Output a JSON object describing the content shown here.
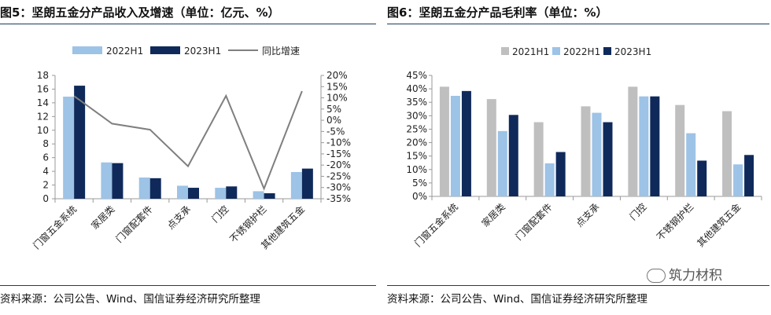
{
  "left": {
    "title": "图5：坚朗五金分产品收入及增速（单位：亿元、%）",
    "source": "资料来源：公司公告、Wind、国信证券经济研究所整理",
    "chart_data": {
      "type": "bar",
      "categories": [
        "门窗五金系统",
        "家居类",
        "门窗配套件",
        "点支承",
        "门控",
        "不锈钢护栏",
        "其他建筑五金"
      ],
      "series": [
        {
          "name": "2022H1",
          "values": [
            14.9,
            5.3,
            3.1,
            1.9,
            1.6,
            1.1,
            3.9
          ],
          "color": "#9dc3e6"
        },
        {
          "name": "2023H1",
          "values": [
            16.5,
            5.2,
            3.0,
            1.6,
            1.8,
            0.8,
            4.4
          ],
          "color": "#0f2a5a"
        }
      ],
      "line": {
        "name": "同比增速",
        "axis": "right",
        "values": [
          10.8,
          -1.5,
          -4.2,
          -20.5,
          10.9,
          -30.5,
          13.0
        ],
        "color": "#7f7f7f"
      },
      "yleft": {
        "min": 0,
        "max": 18,
        "ticks": [
          "0",
          "2",
          "4",
          "6",
          "8",
          "10",
          "12",
          "14",
          "16",
          "18"
        ]
      },
      "yright": {
        "min": -35,
        "max": 20,
        "ticks": [
          "-35%",
          "-30%",
          "-25%",
          "-20%",
          "-15%",
          "-10%",
          "-5%",
          "0%",
          "5%",
          "10%",
          "15%",
          "20%"
        ]
      }
    }
  },
  "right": {
    "title": "图6：坚朗五金分产品毛利率（单位：%）",
    "source": "资料来源：公司公告、Wind、国信证券经济研究所整理",
    "chart_data": {
      "type": "bar",
      "categories": [
        "门窗五金系统",
        "家居类",
        "门窗配套件",
        "点支承",
        "门控",
        "不锈钢护栏",
        "其他建筑五金"
      ],
      "series": [
        {
          "name": "2021H1",
          "values": [
            40.8,
            36.2,
            27.6,
            33.5,
            40.8,
            34.0,
            31.7
          ],
          "color": "#bfbfbf"
        },
        {
          "name": "2022H1",
          "values": [
            37.4,
            24.3,
            12.3,
            31.1,
            37.2,
            23.5,
            11.9
          ],
          "color": "#9dc3e6"
        },
        {
          "name": "2023H1",
          "values": [
            39.2,
            30.3,
            16.5,
            27.6,
            37.2,
            13.3,
            15.4
          ],
          "color": "#0f2a5a"
        }
      ],
      "yleft": {
        "min": 0,
        "max": 45,
        "ticks": [
          "0%",
          "5%",
          "10%",
          "15%",
          "20%",
          "25%",
          "30%",
          "35%",
          "40%",
          "45%"
        ]
      }
    }
  },
  "watermark": "筑力材积"
}
